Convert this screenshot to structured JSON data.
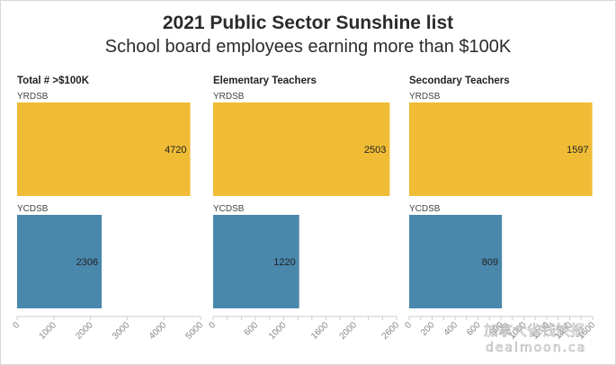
{
  "header": {
    "title": "2021 Public Sector Sunshine list",
    "subtitle": "School board employees earning more than $100K"
  },
  "colors": {
    "yrdsb": "#F0BC36",
    "ycdsb": "#4A87AC",
    "axis": "#cccccc",
    "tick_label": "#888888"
  },
  "chart_data": [
    {
      "type": "bar",
      "orientation": "horizontal",
      "title": "Total # >$100K",
      "categories": [
        "YRDSB",
        "YCDSB"
      ],
      "values": [
        4720,
        2306
      ],
      "xlim": [
        0,
        5000
      ],
      "ticks": [
        0,
        1000,
        2000,
        3000,
        4000,
        5000
      ],
      "grid": false
    },
    {
      "type": "bar",
      "orientation": "horizontal",
      "title": "Elementary Teachers",
      "categories": [
        "YRDSB",
        "YCDSB"
      ],
      "values": [
        2503,
        1220
      ],
      "xlim": [
        0,
        2600
      ],
      "ticks": [
        0,
        200,
        400,
        600,
        800,
        1000,
        1200,
        1400,
        1600,
        1800,
        2000,
        2200,
        2400,
        2600
      ],
      "tick_labels": [
        "0",
        "",
        "",
        "600",
        "",
        "1000",
        "",
        "",
        "1600",
        "",
        "2000",
        "",
        "",
        "2600"
      ],
      "grid": false
    },
    {
      "type": "bar",
      "orientation": "horizontal",
      "title": "Secondary Teachers",
      "categories": [
        "YRDSB",
        "YCDSB"
      ],
      "values": [
        1597,
        809
      ],
      "xlim": [
        0,
        1600
      ],
      "ticks": [
        0,
        100,
        200,
        300,
        400,
        500,
        600,
        700,
        800,
        900,
        1000,
        1100,
        1200,
        1300,
        1400,
        1500,
        1600
      ],
      "tick_labels": [
        "0",
        "",
        "200",
        "",
        "400",
        "",
        "600",
        "",
        "800",
        "",
        "1000",
        "",
        "1200",
        "",
        "1400",
        "",
        "1600"
      ],
      "grid": false
    }
  ],
  "watermark": {
    "text_cn": "加拿大省钱快报",
    "text_en": "dealmoon.ca"
  }
}
